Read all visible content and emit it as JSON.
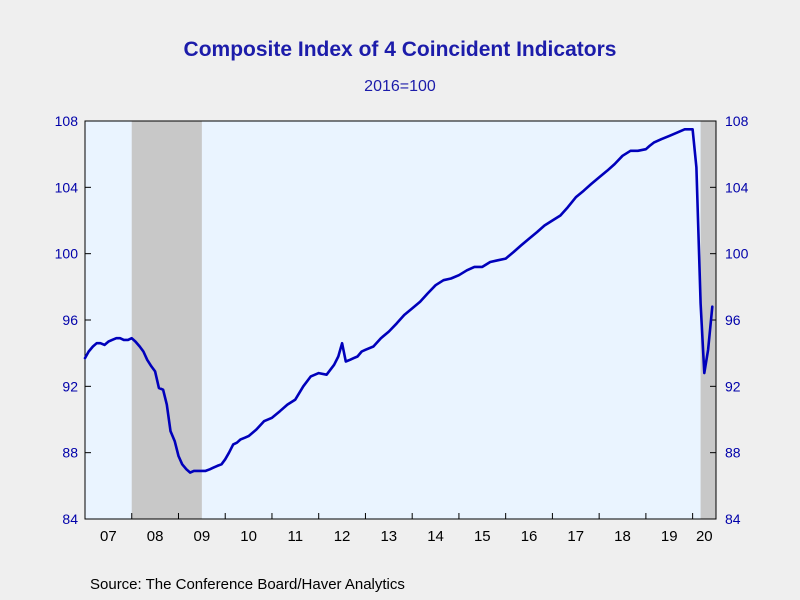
{
  "chart_data": {
    "type": "line",
    "title": "Composite Index of 4 Coincident Indicators",
    "subtitle": "2016=100",
    "source": "Source:  The Conference Board/Haver Analytics",
    "ylim": [
      84,
      108
    ],
    "yticks": [
      84,
      88,
      92,
      96,
      100,
      104,
      108
    ],
    "ytick_labels": [
      "84",
      "88",
      "92",
      "96",
      "100",
      "104",
      "108"
    ],
    "xlim": [
      2007.0,
      2020.5
    ],
    "xtick_labels": [
      "07",
      "08",
      "09",
      "10",
      "11",
      "12",
      "13",
      "14",
      "15",
      "16",
      "17",
      "18",
      "19",
      "20"
    ],
    "recessions": [
      [
        2008.0,
        2009.5
      ],
      [
        2020.17,
        2020.5
      ]
    ],
    "colors": {
      "line": "#0000bb",
      "recession": "#c8c8c8",
      "plot_bg": "#eaf4ff",
      "axis_text": "#0000aa"
    },
    "series": [
      {
        "x": [
          2007.0,
          2007.08,
          2007.17,
          2007.25,
          2007.33,
          2007.42,
          2007.5,
          2007.58,
          2007.67,
          2007.75,
          2007.83,
          2007.92,
          2008.0,
          2008.08,
          2008.17,
          2008.25,
          2008.33,
          2008.42,
          2008.5,
          2008.58,
          2008.67,
          2008.75,
          2008.83,
          2008.92,
          2009.0,
          2009.08,
          2009.17,
          2009.25,
          2009.33,
          2009.42,
          2009.5,
          2009.58,
          2009.67,
          2009.75,
          2009.83,
          2009.92,
          2010.0,
          2010.08,
          2010.17,
          2010.25,
          2010.33,
          2010.42,
          2010.5,
          2010.67,
          2010.83,
          2011.0,
          2011.17,
          2011.33,
          2011.5,
          2011.67,
          2011.83,
          2012.0,
          2012.17,
          2012.33,
          2012.42,
          2012.5,
          2012.58,
          2012.67,
          2012.75,
          2012.83,
          2012.92,
          2013.0,
          2013.17,
          2013.33,
          2013.5,
          2013.67,
          2013.83,
          2014.0,
          2014.17,
          2014.33,
          2014.5,
          2014.67,
          2014.83,
          2015.0,
          2015.17,
          2015.33,
          2015.5,
          2015.67,
          2015.83,
          2016.0,
          2016.17,
          2016.33,
          2016.5,
          2016.67,
          2016.83,
          2017.0,
          2017.17,
          2017.33,
          2017.5,
          2017.67,
          2017.83,
          2018.0,
          2018.17,
          2018.33,
          2018.5,
          2018.67,
          2018.83,
          2019.0,
          2019.08,
          2019.17,
          2019.33,
          2019.5,
          2019.67,
          2019.83,
          2020.0,
          2020.08,
          2020.17,
          2020.25,
          2020.33,
          2020.42
        ],
        "values": [
          93.7,
          94.1,
          94.4,
          94.6,
          94.6,
          94.5,
          94.7,
          94.8,
          94.9,
          94.9,
          94.8,
          94.8,
          94.9,
          94.7,
          94.4,
          94.1,
          93.6,
          93.2,
          92.9,
          91.9,
          91.8,
          90.9,
          89.3,
          88.7,
          87.8,
          87.3,
          87.0,
          86.8,
          86.9,
          86.9,
          86.9,
          86.9,
          87.0,
          87.1,
          87.2,
          87.3,
          87.6,
          88.0,
          88.5,
          88.6,
          88.8,
          88.9,
          89.0,
          89.4,
          89.9,
          90.1,
          90.5,
          90.9,
          91.2,
          92.0,
          92.6,
          92.8,
          92.7,
          93.3,
          93.8,
          94.6,
          93.5,
          93.6,
          93.7,
          93.8,
          94.1,
          94.2,
          94.4,
          94.9,
          95.3,
          95.8,
          96.3,
          96.7,
          97.1,
          97.6,
          98.1,
          98.4,
          98.5,
          98.7,
          99.0,
          99.2,
          99.2,
          99.5,
          99.6,
          99.7,
          100.1,
          100.5,
          100.9,
          101.3,
          101.7,
          102.0,
          102.3,
          102.8,
          103.4,
          103.8,
          104.2,
          104.6,
          105.0,
          105.4,
          105.9,
          106.2,
          106.2,
          106.3,
          106.5,
          106.7,
          106.9,
          107.1,
          107.3,
          107.5,
          107.5,
          105.2,
          97.0,
          92.8,
          94.2,
          96.8
        ]
      }
    ]
  }
}
